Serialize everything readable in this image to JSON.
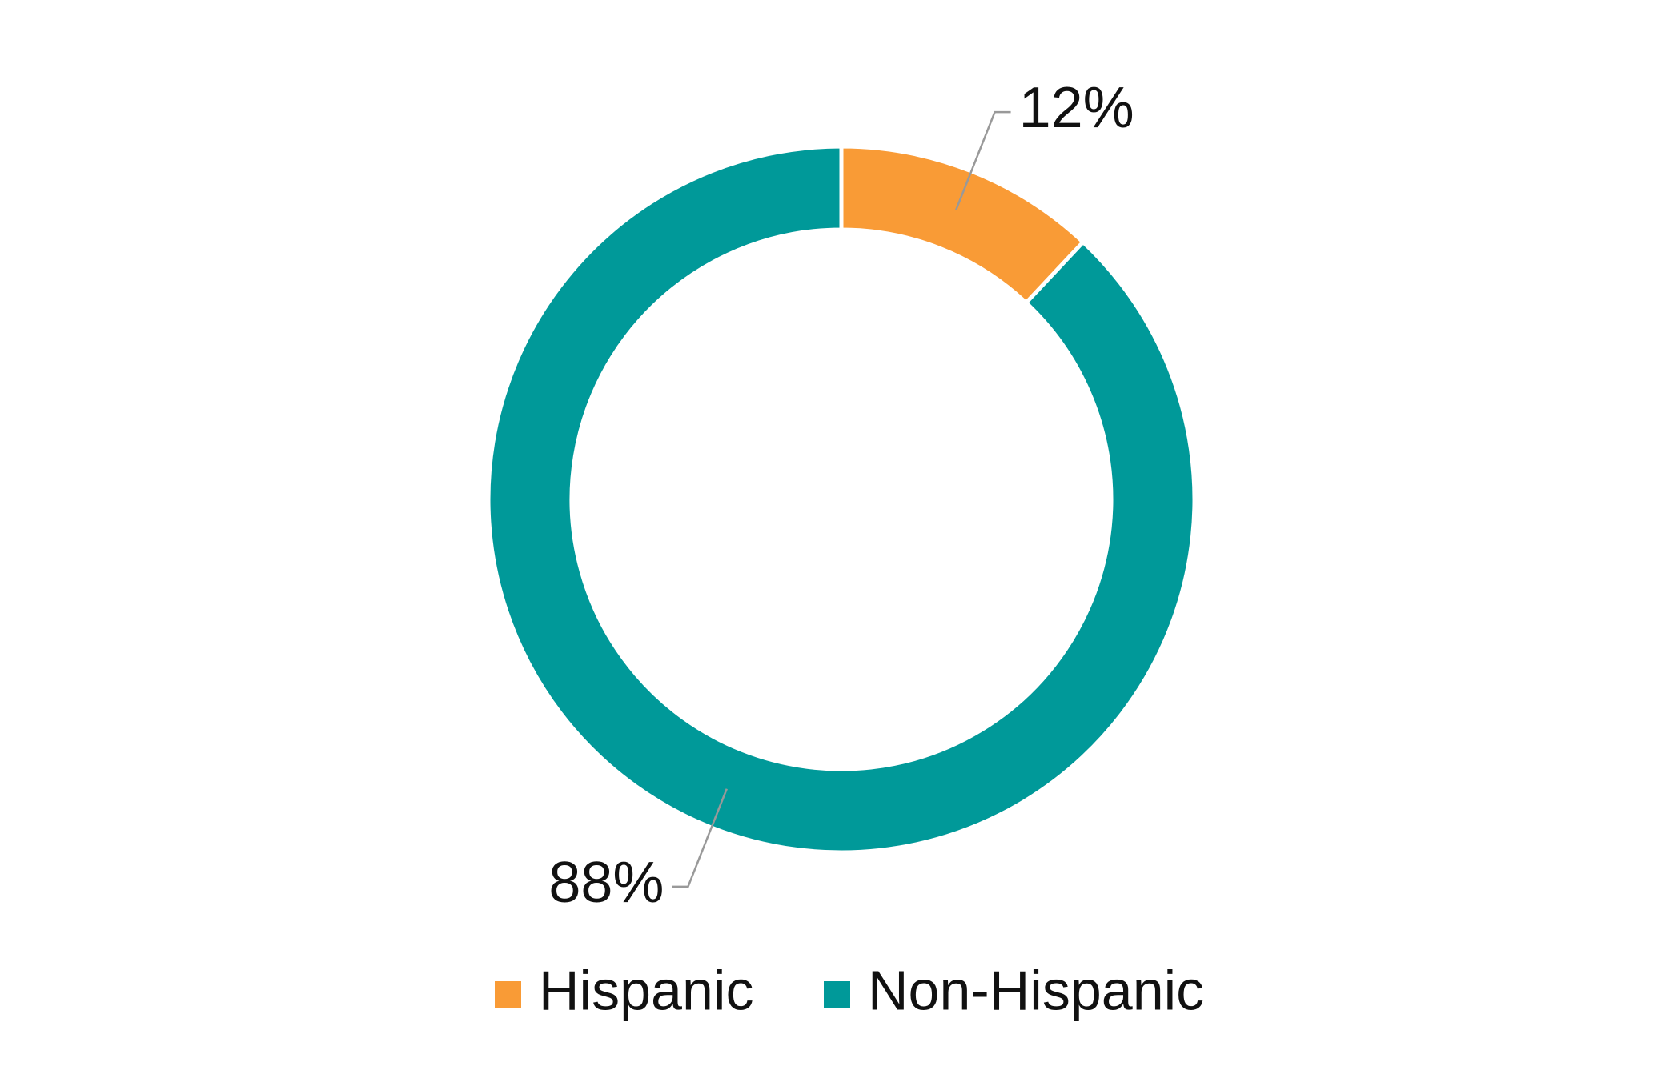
{
  "chart_data": {
    "type": "pie",
    "donut": true,
    "categories": [
      "Hispanic",
      "Non-Hispanic"
    ],
    "values": [
      12,
      88
    ],
    "value_labels": [
      "12%",
      "88%"
    ],
    "colors": [
      "#f99b36",
      "#009999"
    ],
    "legend": "bottom"
  }
}
